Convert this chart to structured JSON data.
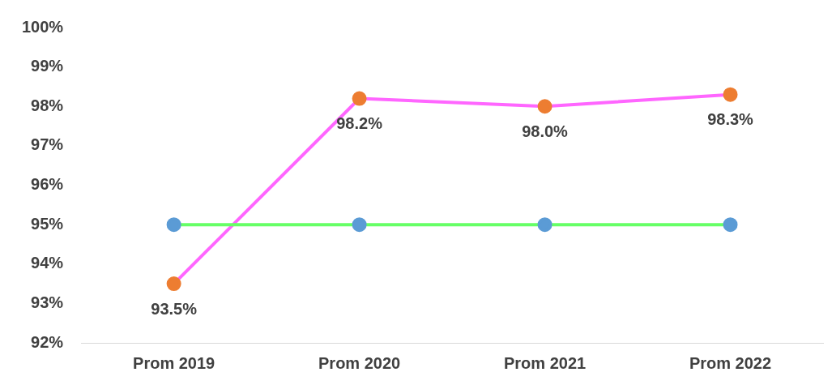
{
  "chart_data": {
    "type": "line",
    "categories": [
      "Prom 2019",
      "Prom 2020",
      "Prom 2021",
      "Prom 2022"
    ],
    "series": [
      {
        "color": "#66ff66",
        "colors": [
          "#5b9bd5",
          "#5b9bd5",
          "#5b9bd5",
          "#5b9bd5"
        ],
        "values": [
          95,
          95,
          95,
          95
        ]
      },
      {
        "color": "#ff66ff",
        "colors": [
          "#ed7d31",
          "#ed7d31",
          "#ed7d31",
          "#ed7d31"
        ],
        "values": [
          93.5,
          98.2,
          98.0,
          98.3
        ],
        "value_labels": [
          "93.5%",
          "98.2%",
          "98.0%",
          "98.3%"
        ]
      }
    ],
    "ylim": [
      92,
      100
    ],
    "yticks": [
      {
        "value": 92,
        "label": "92%"
      },
      {
        "value": 93,
        "label": "93%"
      },
      {
        "value": 94,
        "label": "94%"
      },
      {
        "value": 95,
        "label": "95%"
      },
      {
        "value": 96,
        "label": "96%"
      },
      {
        "value": 97,
        "label": "97%"
      },
      {
        "value": 98,
        "label": "98%"
      },
      {
        "value": 99,
        "label": "99%"
      },
      {
        "value": 100,
        "label": "100%"
      }
    ],
    "grid": false,
    "legend": false,
    "marker": "circle",
    "line_style": "solid"
  }
}
